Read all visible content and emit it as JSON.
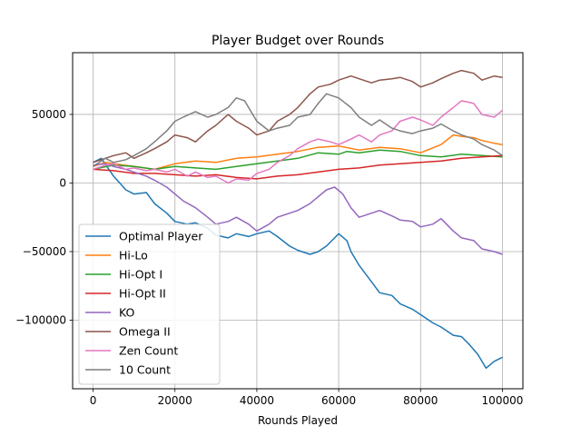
{
  "chart_data": {
    "type": "line",
    "title": "Player Budget over Rounds",
    "xlabel": "Rounds Played",
    "ylabel": "",
    "xlim": [
      -5000,
      105000
    ],
    "ylim": [
      -150000,
      95000
    ],
    "xticks": [
      0,
      20000,
      40000,
      60000,
      80000,
      100000
    ],
    "xtick_labels": [
      "0",
      "20000",
      "40000",
      "60000",
      "80000",
      "100000"
    ],
    "yticks": [
      -100000,
      -50000,
      0,
      50000
    ],
    "ytick_labels": [
      "−100000",
      "−50000",
      "0",
      "50000"
    ],
    "grid": true,
    "legend_position": "lower-left",
    "series": [
      {
        "name": "Optimal Player",
        "color": "#1f77b4",
        "x": [
          0,
          2000,
          5000,
          8000,
          10000,
          13000,
          15000,
          18000,
          20000,
          23000,
          25000,
          28000,
          30000,
          33000,
          35000,
          38000,
          40000,
          43000,
          45000,
          48000,
          50000,
          53000,
          55000,
          57000,
          59000,
          60000,
          62000,
          63000,
          65000,
          68000,
          70000,
          73000,
          75000,
          78000,
          80000,
          83000,
          85000,
          88000,
          90000,
          92000,
          94000,
          96000,
          98000,
          100000
        ],
        "y": [
          15000,
          18000,
          5000,
          -5000,
          -8000,
          -7000,
          -15000,
          -22000,
          -28000,
          -30000,
          -29000,
          -33000,
          -38000,
          -40000,
          -37000,
          -39000,
          -37000,
          -35000,
          -39000,
          -46000,
          -49000,
          -52000,
          -50000,
          -46000,
          -40000,
          -37000,
          -42000,
          -50000,
          -60000,
          -72000,
          -80000,
          -82000,
          -88000,
          -92000,
          -96000,
          -102000,
          -105000,
          -111000,
          -112000,
          -118000,
          -125000,
          -135000,
          -130000,
          -127000
        ]
      },
      {
        "name": "Hi-Lo",
        "color": "#ff7f0e",
        "x": [
          0,
          3000,
          5000,
          10000,
          15000,
          20000,
          25000,
          30000,
          35000,
          40000,
          45000,
          50000,
          55000,
          60000,
          65000,
          70000,
          75000,
          80000,
          85000,
          88000,
          90000,
          93000,
          95000,
          98000,
          100000
        ],
        "y": [
          12000,
          15000,
          14000,
          12000,
          10000,
          14000,
          16000,
          15000,
          18000,
          19000,
          21000,
          23000,
          26000,
          27000,
          24000,
          26000,
          25000,
          22000,
          28000,
          35000,
          34000,
          33000,
          31000,
          29000,
          28000
        ]
      },
      {
        "name": "Hi-Opt I",
        "color": "#2ca02c",
        "x": [
          0,
          5000,
          10000,
          15000,
          20000,
          25000,
          30000,
          35000,
          40000,
          45000,
          50000,
          55000,
          60000,
          62000,
          65000,
          70000,
          75000,
          80000,
          85000,
          90000,
          95000,
          100000
        ],
        "y": [
          10000,
          13000,
          12000,
          10000,
          12000,
          11000,
          10000,
          12000,
          14000,
          16000,
          18000,
          22000,
          21000,
          23000,
          22000,
          24000,
          23000,
          20000,
          19000,
          21000,
          20000,
          19000
        ]
      },
      {
        "name": "Hi-Opt II",
        "color": "#d62728",
        "x": [
          0,
          5000,
          10000,
          15000,
          20000,
          25000,
          30000,
          35000,
          40000,
          45000,
          50000,
          55000,
          60000,
          65000,
          70000,
          75000,
          80000,
          85000,
          90000,
          95000,
          100000
        ],
        "y": [
          10000,
          9000,
          7000,
          7000,
          6000,
          5000,
          6000,
          4000,
          3000,
          5000,
          6000,
          8000,
          10000,
          11000,
          13000,
          14000,
          15000,
          16000,
          18000,
          19000,
          20000
        ]
      },
      {
        "name": "KO",
        "color": "#9467bd",
        "x": [
          0,
          3000,
          5000,
          8000,
          10000,
          13000,
          15000,
          18000,
          20000,
          22000,
          25000,
          28000,
          30000,
          33000,
          35000,
          38000,
          40000,
          43000,
          45000,
          48000,
          50000,
          53000,
          55000,
          57000,
          59000,
          61000,
          63000,
          65000,
          68000,
          70000,
          73000,
          75000,
          78000,
          80000,
          83000,
          85000,
          88000,
          90000,
          93000,
          95000,
          98000,
          100000
        ],
        "y": [
          13000,
          14000,
          12000,
          10000,
          8000,
          5000,
          2000,
          -3000,
          -8000,
          -13000,
          -18000,
          -25000,
          -30000,
          -28000,
          -25000,
          -30000,
          -35000,
          -30000,
          -25000,
          -22000,
          -20000,
          -15000,
          -10000,
          -5000,
          -3000,
          -8000,
          -18000,
          -25000,
          -22000,
          -20000,
          -24000,
          -27000,
          -28000,
          -32000,
          -30000,
          -26000,
          -35000,
          -40000,
          -42000,
          -48000,
          -50000,
          -52000
        ]
      },
      {
        "name": "Omega II",
        "color": "#8c564b",
        "x": [
          0,
          3000,
          5000,
          8000,
          10000,
          13000,
          15000,
          18000,
          20000,
          23000,
          25000,
          28000,
          30000,
          33000,
          35000,
          38000,
          40000,
          43000,
          45000,
          48000,
          50000,
          53000,
          55000,
          58000,
          60000,
          63000,
          65000,
          68000,
          70000,
          73000,
          75000,
          78000,
          80000,
          83000,
          85000,
          88000,
          90000,
          93000,
          95000,
          98000,
          100000
        ],
        "y": [
          15000,
          18000,
          20000,
          22000,
          18000,
          22000,
          25000,
          30000,
          35000,
          33000,
          30000,
          38000,
          42000,
          50000,
          45000,
          40000,
          35000,
          38000,
          45000,
          50000,
          55000,
          65000,
          70000,
          72000,
          75000,
          78000,
          76000,
          73000,
          75000,
          76000,
          77000,
          74000,
          70000,
          73000,
          76000,
          80000,
          82000,
          80000,
          75000,
          78000,
          77000
        ]
      },
      {
        "name": "Zen Count",
        "color": "#e377c2",
        "x": [
          0,
          3000,
          5000,
          8000,
          10000,
          13000,
          15000,
          18000,
          20000,
          23000,
          25000,
          28000,
          30000,
          33000,
          35000,
          38000,
          40000,
          43000,
          45000,
          48000,
          50000,
          53000,
          55000,
          58000,
          60000,
          63000,
          65000,
          68000,
          70000,
          73000,
          75000,
          78000,
          80000,
          83000,
          85000,
          88000,
          90000,
          93000,
          95000,
          98000,
          100000
        ],
        "y": [
          10000,
          13000,
          14000,
          10000,
          11000,
          9000,
          10000,
          8000,
          10000,
          5000,
          8000,
          4000,
          5000,
          0,
          3000,
          2000,
          7000,
          10000,
          15000,
          20000,
          25000,
          30000,
          32000,
          30000,
          28000,
          32000,
          35000,
          30000,
          35000,
          38000,
          45000,
          48000,
          46000,
          42000,
          48000,
          55000,
          60000,
          58000,
          50000,
          48000,
          53000
        ]
      },
      {
        "name": "10 Count",
        "color": "#7f7f7f",
        "x": [
          0,
          3000,
          5000,
          8000,
          10000,
          13000,
          15000,
          18000,
          20000,
          22000,
          25000,
          28000,
          30000,
          33000,
          35000,
          37000,
          40000,
          43000,
          45000,
          48000,
          50000,
          53000,
          55000,
          57000,
          60000,
          63000,
          65000,
          68000,
          70000,
          73000,
          75000,
          78000,
          80000,
          83000,
          85000,
          88000,
          90000,
          93000,
          95000,
          98000,
          100000
        ],
        "y": [
          12000,
          18000,
          15000,
          17000,
          20000,
          25000,
          30000,
          38000,
          45000,
          48000,
          52000,
          48000,
          50000,
          55000,
          62000,
          60000,
          45000,
          38000,
          40000,
          42000,
          48000,
          50000,
          58000,
          65000,
          62000,
          55000,
          48000,
          42000,
          46000,
          40000,
          38000,
          36000,
          38000,
          40000,
          43000,
          38000,
          35000,
          32000,
          28000,
          24000,
          20000
        ]
      }
    ]
  }
}
